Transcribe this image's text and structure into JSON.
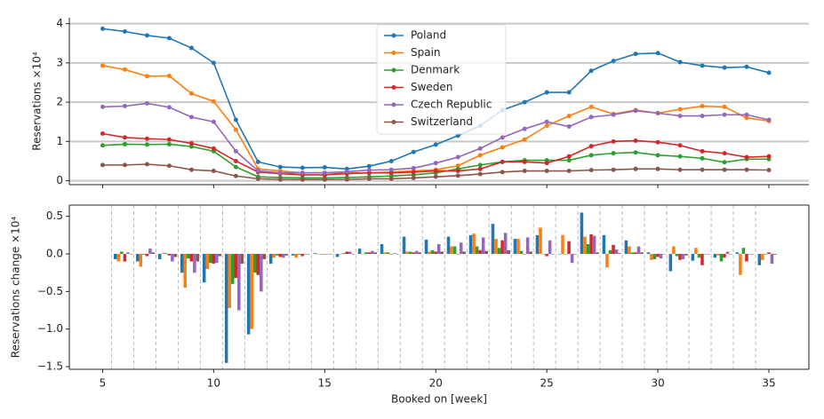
{
  "chart_data": [
    {
      "type": "line",
      "ylabel": "Reservations ×10⁴",
      "x": [
        5,
        6,
        7,
        8,
        9,
        10,
        11,
        12,
        13,
        14,
        15,
        16,
        17,
        18,
        19,
        20,
        21,
        22,
        23,
        24,
        25,
        26,
        27,
        28,
        29,
        30,
        31,
        32,
        33,
        34,
        35
      ],
      "xlim": [
        3.5,
        36.8
      ],
      "xticks": [
        5,
        10,
        15,
        20,
        25,
        30,
        35
      ],
      "ylim": [
        -0.1,
        4.15
      ],
      "yticks": [
        0,
        1,
        2,
        3,
        4
      ],
      "grid": true,
      "legend": "upper center",
      "series": [
        {
          "name": "Poland",
          "color": "#1f77b4",
          "values": [
            3.87,
            3.8,
            3.7,
            3.63,
            3.38,
            3.0,
            1.55,
            0.48,
            0.35,
            0.33,
            0.34,
            0.3,
            0.37,
            0.5,
            0.73,
            0.92,
            1.15,
            1.4,
            1.8,
            2.0,
            2.25,
            2.25,
            2.8,
            3.05,
            3.23,
            3.25,
            3.02,
            2.93,
            2.88,
            2.9,
            2.75
          ]
        },
        {
          "name": "Spain",
          "color": "#ff7f0e",
          "values": [
            2.93,
            2.83,
            2.66,
            2.67,
            2.22,
            2.02,
            1.3,
            0.3,
            0.25,
            0.2,
            0.2,
            0.2,
            0.2,
            0.22,
            0.25,
            0.28,
            0.38,
            0.65,
            0.85,
            1.05,
            1.4,
            1.65,
            1.88,
            1.7,
            1.8,
            1.72,
            1.82,
            1.9,
            1.88,
            1.6,
            1.52
          ]
        },
        {
          "name": "Denmark",
          "color": "#2ca02c",
          "values": [
            0.9,
            0.93,
            0.92,
            0.93,
            0.87,
            0.75,
            0.35,
            0.1,
            0.08,
            0.07,
            0.07,
            0.08,
            0.1,
            0.12,
            0.15,
            0.2,
            0.3,
            0.4,
            0.48,
            0.52,
            0.52,
            0.52,
            0.65,
            0.7,
            0.72,
            0.65,
            0.62,
            0.57,
            0.47,
            0.55,
            0.55
          ]
        },
        {
          "name": "Sweden",
          "color": "#d62728",
          "values": [
            1.2,
            1.1,
            1.07,
            1.05,
            0.95,
            0.82,
            0.5,
            0.22,
            0.18,
            0.15,
            0.15,
            0.18,
            0.2,
            0.2,
            0.22,
            0.25,
            0.25,
            0.3,
            0.48,
            0.48,
            0.45,
            0.62,
            0.88,
            1.0,
            1.02,
            0.98,
            0.9,
            0.75,
            0.7,
            0.6,
            0.62
          ]
        },
        {
          "name": "Czech Republic",
          "color": "#9467bd",
          "values": [
            1.88,
            1.9,
            1.97,
            1.87,
            1.62,
            1.5,
            0.75,
            0.25,
            0.2,
            0.2,
            0.2,
            0.23,
            0.27,
            0.28,
            0.32,
            0.45,
            0.6,
            0.82,
            1.1,
            1.32,
            1.5,
            1.38,
            1.62,
            1.68,
            1.78,
            1.72,
            1.65,
            1.65,
            1.68,
            1.68,
            1.55
          ]
        },
        {
          "name": "Switzerland",
          "color": "#8c564b",
          "values": [
            0.4,
            0.4,
            0.42,
            0.38,
            0.28,
            0.25,
            0.12,
            0.05,
            0.03,
            0.03,
            0.03,
            0.03,
            0.05,
            0.05,
            0.07,
            0.1,
            0.13,
            0.17,
            0.22,
            0.25,
            0.25,
            0.25,
            0.27,
            0.28,
            0.3,
            0.3,
            0.28,
            0.28,
            0.28,
            0.28,
            0.27
          ]
        }
      ]
    },
    {
      "type": "bar",
      "xlabel": "Booked on [week]",
      "ylabel": "Reservations change ×10⁴",
      "x": [
        6,
        7,
        8,
        9,
        10,
        11,
        12,
        13,
        14,
        15,
        16,
        17,
        18,
        19,
        20,
        21,
        22,
        23,
        24,
        25,
        26,
        27,
        28,
        29,
        30,
        31,
        32,
        33,
        34,
        35
      ],
      "xlim": [
        3.5,
        36.8
      ],
      "xticks": [
        5,
        10,
        15,
        20,
        25,
        30,
        35
      ],
      "ylim": [
        -1.535,
        0.65
      ],
      "yticks": [
        {
          "value": -1.5,
          "label": "−1.5"
        },
        {
          "value": -1.0,
          "label": "−1.0"
        },
        {
          "value": -0.5,
          "label": "−0.5"
        },
        {
          "value": 0,
          "label": "0.0"
        },
        0.5
      ],
      "grid": false,
      "series": [
        {
          "color": "#1f77b4",
          "values": [
            -0.07,
            -0.1,
            -0.07,
            -0.25,
            -0.38,
            -1.45,
            -1.07,
            -0.13,
            -0.02,
            0.01,
            -0.04,
            0.07,
            0.13,
            0.23,
            0.19,
            0.23,
            0.25,
            0.4,
            0.2,
            0.25,
            0,
            0.55,
            0.25,
            0.18,
            0.02,
            -0.23,
            -0.09,
            -0.05,
            0.02,
            -0.15
          ]
        },
        {
          "color": "#ff7f0e",
          "values": [
            -0.1,
            -0.17,
            0.01,
            -0.45,
            -0.2,
            -0.72,
            -1.0,
            -0.05,
            -0.05,
            0,
            0,
            0,
            0.02,
            0.03,
            0.03,
            0.1,
            0.27,
            0.2,
            0.2,
            0.35,
            0.25,
            0.23,
            -0.18,
            0.1,
            -0.08,
            0.1,
            0.08,
            -0.02,
            -0.28,
            -0.08
          ]
        },
        {
          "color": "#2ca02c",
          "values": [
            0.03,
            -0.01,
            0.01,
            -0.06,
            -0.12,
            -0.4,
            -0.25,
            -0.02,
            -0.01,
            0,
            0.01,
            0.02,
            0.02,
            0.03,
            0.05,
            0.1,
            0.1,
            0.08,
            0.04,
            0,
            0,
            0.13,
            0.05,
            0.02,
            -0.07,
            -0.03,
            -0.05,
            -0.1,
            0.08,
            0
          ]
        },
        {
          "color": "#d62728",
          "values": [
            -0.1,
            -0.03,
            -0.02,
            -0.1,
            -0.13,
            -0.32,
            -0.28,
            -0.04,
            -0.03,
            0,
            0.03,
            0.02,
            0,
            0.02,
            0.03,
            0,
            0.05,
            0.18,
            0,
            -0.03,
            0.17,
            0.26,
            0.12,
            0.02,
            -0.04,
            -0.08,
            -0.15,
            -0.05,
            -0.1,
            0.02
          ]
        },
        {
          "color": "#9467bd",
          "values": [
            0.02,
            0.07,
            -0.1,
            -0.25,
            -0.12,
            -0.75,
            -0.5,
            -0.05,
            0,
            0,
            0.03,
            0.04,
            0.01,
            0.04,
            0.13,
            0.15,
            0.22,
            0.28,
            0.22,
            0.18,
            -0.12,
            0.24,
            0.06,
            0.1,
            -0.06,
            -0.07,
            0,
            0.03,
            0,
            -0.13
          ]
        },
        {
          "color": "#8c564b",
          "values": [
            0,
            0.02,
            -0.04,
            -0.1,
            -0.03,
            -0.13,
            -0.07,
            -0.02,
            0,
            0,
            0,
            0.02,
            0,
            0.02,
            0.03,
            0.03,
            0.04,
            0.05,
            0.03,
            0,
            0,
            0.02,
            0.01,
            0.02,
            0,
            -0.02,
            0,
            0,
            0,
            -0.01
          ]
        }
      ]
    }
  ]
}
